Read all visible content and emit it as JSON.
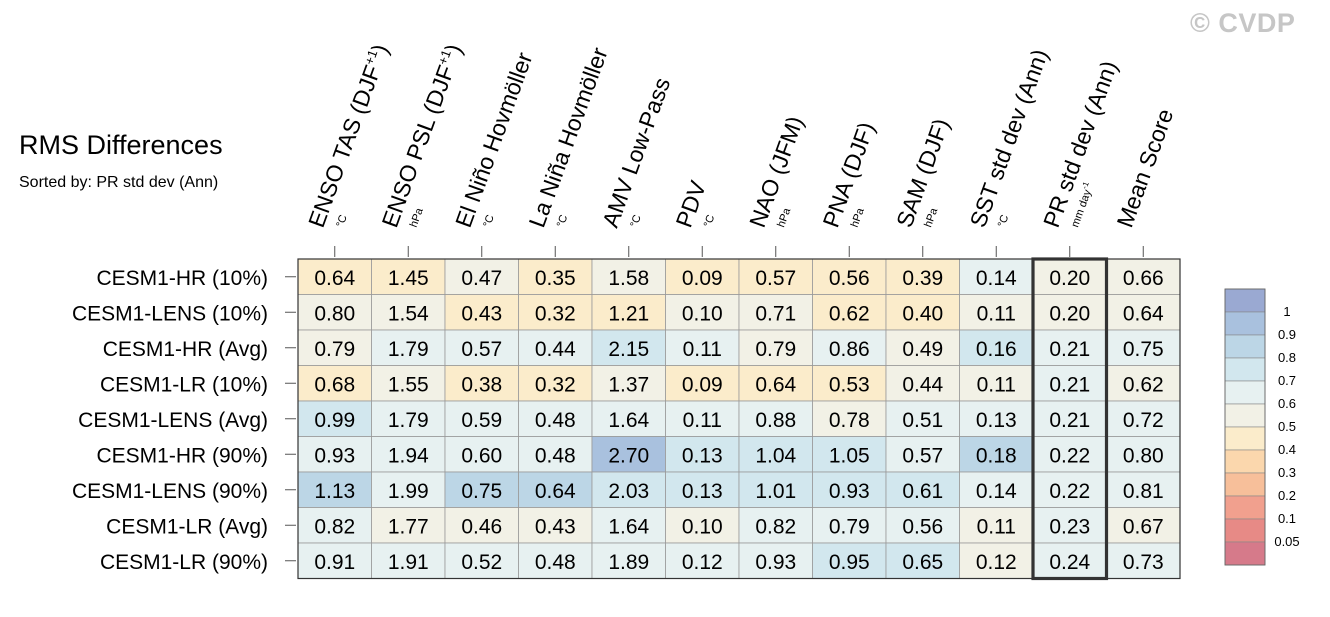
{
  "watermark": "© CVDP",
  "title": "RMS Differences",
  "subtitle": "Sorted by: PR std dev (Ann)",
  "chart_data": {
    "type": "heatmap",
    "columns": [
      {
        "label": "ENSO TAS (DJF",
        "sup": "+1",
        "tail": ")",
        "unit": "°C"
      },
      {
        "label": "ENSO PSL (DJF",
        "sup": "+1",
        "tail": ")",
        "unit": "hPa"
      },
      {
        "label": "El Niño Hovmöller",
        "sup": "",
        "tail": "",
        "unit": "°C"
      },
      {
        "label": "La Niña Hovmöller",
        "sup": "",
        "tail": "",
        "unit": "°C"
      },
      {
        "label": "AMV Low-Pass",
        "sup": "",
        "tail": "",
        "unit": "°C"
      },
      {
        "label": "PDV",
        "sup": "",
        "tail": "",
        "unit": "°C"
      },
      {
        "label": "NAO (JFM)",
        "sup": "",
        "tail": "",
        "unit": "hPa"
      },
      {
        "label": "PNA (DJF)",
        "sup": "",
        "tail": "",
        "unit": "hPa"
      },
      {
        "label": "SAM (DJF)",
        "sup": "",
        "tail": "",
        "unit": "hPa"
      },
      {
        "label": "SST std dev (Ann)",
        "sup": "",
        "tail": "",
        "unit": "°C"
      },
      {
        "label": "PR std dev (Ann)",
        "sup": "",
        "tail": "",
        "unit": "mm day",
        "unit_sup": "-1"
      },
      {
        "label": "Mean Score",
        "sup": "",
        "tail": "",
        "unit": ""
      }
    ],
    "highlighted_column": 10,
    "rows": [
      "CESM1-HR (10%)",
      "CESM1-LENS (10%)",
      "CESM1-HR (Avg)",
      "CESM1-LR (10%)",
      "CESM1-LENS (Avg)",
      "CESM1-HR (90%)",
      "CESM1-LENS (90%)",
      "CESM1-LR (Avg)",
      "CESM1-LR (90%)"
    ],
    "values": [
      [
        "0.64",
        "1.45",
        "0.47",
        "0.35",
        "1.58",
        "0.09",
        "0.57",
        "0.56",
        "0.39",
        "0.14",
        "0.20",
        "0.66"
      ],
      [
        "0.80",
        "1.54",
        "0.43",
        "0.32",
        "1.21",
        "0.10",
        "0.71",
        "0.62",
        "0.40",
        "0.11",
        "0.20",
        "0.64"
      ],
      [
        "0.79",
        "1.79",
        "0.57",
        "0.44",
        "2.15",
        "0.11",
        "0.79",
        "0.86",
        "0.49",
        "0.16",
        "0.21",
        "0.75"
      ],
      [
        "0.68",
        "1.55",
        "0.38",
        "0.32",
        "1.37",
        "0.09",
        "0.64",
        "0.53",
        "0.44",
        "0.11",
        "0.21",
        "0.62"
      ],
      [
        "0.99",
        "1.79",
        "0.59",
        "0.48",
        "1.64",
        "0.11",
        "0.88",
        "0.78",
        "0.51",
        "0.13",
        "0.21",
        "0.72"
      ],
      [
        "0.93",
        "1.94",
        "0.60",
        "0.48",
        "2.70",
        "0.13",
        "1.04",
        "1.05",
        "0.57",
        "0.18",
        "0.22",
        "0.80"
      ],
      [
        "1.13",
        "1.99",
        "0.75",
        "0.64",
        "2.03",
        "0.13",
        "1.01",
        "0.93",
        "0.61",
        "0.14",
        "0.22",
        "0.81"
      ],
      [
        "0.82",
        "1.77",
        "0.46",
        "0.43",
        "1.64",
        "0.10",
        "0.82",
        "0.79",
        "0.56",
        "0.11",
        "0.23",
        "0.67"
      ],
      [
        "0.91",
        "1.91",
        "0.52",
        "0.48",
        "1.89",
        "0.12",
        "0.93",
        "0.95",
        "0.65",
        "0.12",
        "0.24",
        "0.73"
      ]
    ],
    "colorbar": {
      "labels": [
        "1",
        "0.9",
        "0.8",
        "0.7",
        "0.6",
        "0.5",
        "0.4",
        "0.3",
        "0.2",
        "0.1",
        "0.05"
      ],
      "colors": [
        "#9aa9d2",
        "#a9c1de",
        "#bcd6e6",
        "#d2e7ee",
        "#e7f1f1",
        "#f2f1e6",
        "#fbeccb",
        "#fbd7ad",
        "#f7bf9a",
        "#f1a08e",
        "#e78a86",
        "#d67a8a"
      ]
    }
  }
}
